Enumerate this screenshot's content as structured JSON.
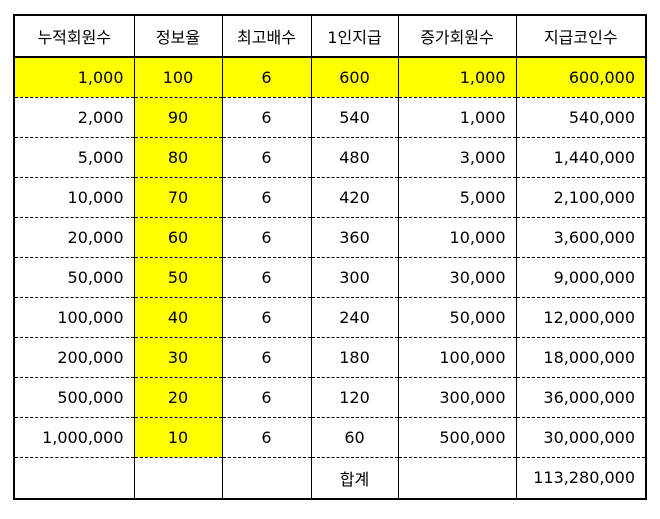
{
  "colors": {
    "highlight": "#ffff00",
    "border": "#000000",
    "background": "#ffffff"
  },
  "headers": [
    "누적회원수",
    "정보율",
    "최고배수",
    "1인지급",
    "증가회원수",
    "지급코인수"
  ],
  "rows": [
    [
      "1,000",
      "100",
      "6",
      "600",
      "1,000",
      "600,000"
    ],
    [
      "2,000",
      "90",
      "6",
      "540",
      "1,000",
      "540,000"
    ],
    [
      "5,000",
      "80",
      "6",
      "480",
      "3,000",
      "1,440,000"
    ],
    [
      "10,000",
      "70",
      "6",
      "420",
      "5,000",
      "2,100,000"
    ],
    [
      "20,000",
      "60",
      "6",
      "360",
      "10,000",
      "3,600,000"
    ],
    [
      "50,000",
      "50",
      "6",
      "300",
      "30,000",
      "9,000,000"
    ],
    [
      "100,000",
      "40",
      "6",
      "240",
      "50,000",
      "12,000,000"
    ],
    [
      "200,000",
      "30",
      "6",
      "180",
      "100,000",
      "18,000,000"
    ],
    [
      "500,000",
      "20",
      "6",
      "120",
      "300,000",
      "36,000,000"
    ],
    [
      "1,000,000",
      "10",
      "6",
      "60",
      "500,000",
      "30,000,000"
    ]
  ],
  "total": {
    "label": "합계",
    "value": "113,280,000"
  }
}
